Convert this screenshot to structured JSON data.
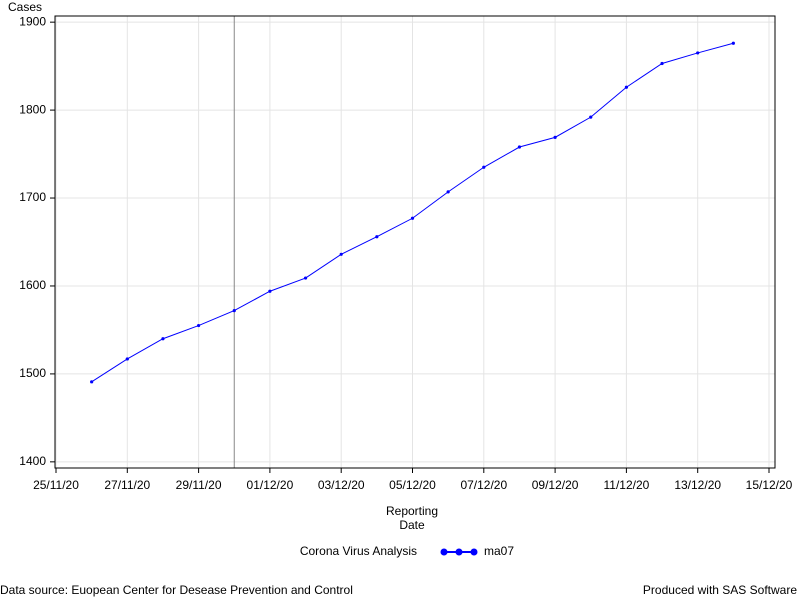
{
  "chart_data": {
    "type": "line",
    "y_label": "Cases",
    "x_label": "Reporting Date",
    "x": [
      "26/11/20",
      "27/11/20",
      "28/11/20",
      "29/11/20",
      "30/11/20",
      "01/12/20",
      "02/12/20",
      "03/12/20",
      "04/12/20",
      "05/12/20",
      "06/12/20",
      "07/12/20",
      "08/12/20",
      "09/12/20",
      "10/12/20",
      "11/12/20",
      "12/12/20",
      "13/12/20",
      "14/12/20"
    ],
    "series": [
      {
        "name": "ma07",
        "color": "#0000ff",
        "values": [
          1491,
          1517,
          1540,
          1555,
          1572,
          1594,
          1609,
          1636,
          1656,
          1677,
          1707,
          1735,
          1758,
          1769,
          1792,
          1826,
          1853,
          1865,
          1876
        ]
      }
    ],
    "legend_title": "Corona Virus Analysis",
    "xlim": [
      "25/11/20",
      "15/12/20"
    ],
    "xticks": [
      "25/11/20",
      "27/11/20",
      "29/11/20",
      "01/12/20",
      "03/12/20",
      "05/12/20",
      "07/12/20",
      "09/12/20",
      "11/12/20",
      "13/12/20",
      "15/12/20"
    ],
    "ylim": [
      1393,
      1907
    ],
    "yticks": [
      1400,
      1500,
      1600,
      1700,
      1800,
      1900
    ],
    "reference_line_x": "30/11/20",
    "grid": true,
    "footnote_left": "Data source: Euopean Center for Desease Prevention and Control",
    "footnote_right": "Produced with SAS Software"
  }
}
